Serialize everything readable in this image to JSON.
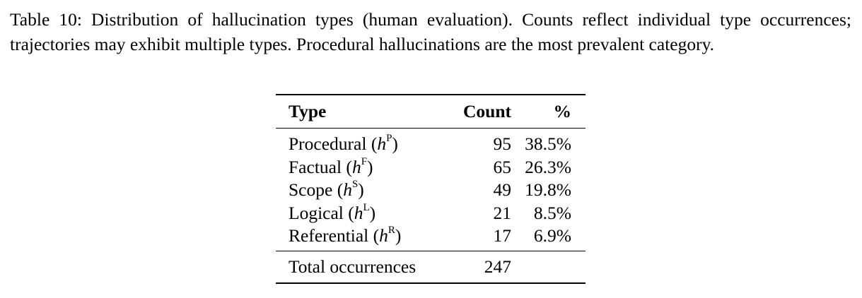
{
  "caption": "Table 10: Distribution of hallucination types (human evaluation). Counts reflect individual type occurrences; trajectories may exhibit multiple types. Procedural hallucinations are the most prevalent category.",
  "table": {
    "headers": {
      "type": "Type",
      "count": "Count",
      "pct": "%"
    },
    "rows": [
      {
        "name": "Procedural (",
        "symbol": "h",
        "sup": "P",
        "close": ")",
        "count": "95",
        "pct": "38.5%"
      },
      {
        "name": "Factual (",
        "symbol": "h",
        "sup": "F",
        "close": ")",
        "count": "65",
        "pct": "26.3%"
      },
      {
        "name": "Scope (",
        "symbol": "h",
        "sup": "S",
        "close": ")",
        "count": "49",
        "pct": "19.8%"
      },
      {
        "name": "Logical (",
        "symbol": "h",
        "sup": "L",
        "close": ")",
        "count": "21",
        "pct": "8.5%"
      },
      {
        "name": "Referential (",
        "symbol": "h",
        "sup": "R",
        "close": ")",
        "count": "17",
        "pct": "6.9%"
      }
    ],
    "total": {
      "label": "Total occurrences",
      "count": "247",
      "pct": ""
    }
  }
}
